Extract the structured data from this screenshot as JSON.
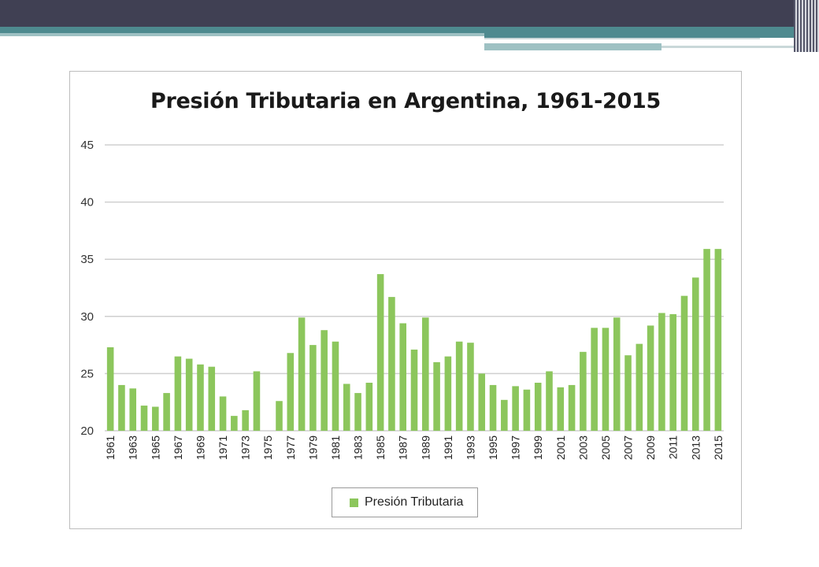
{
  "slide": {
    "accent_dark": "#404053",
    "accent_teal": "#4e8a8f"
  },
  "chart_data": {
    "type": "bar",
    "title": "Presión Tributaria en Argentina, 1961-2015",
    "xlabel": "",
    "ylabel": "",
    "ylim": [
      20,
      45
    ],
    "yticks": [
      20,
      25,
      30,
      35,
      40,
      45
    ],
    "grid": true,
    "legend_position": "bottom",
    "bar_color": "#8cc65c",
    "categories": [
      "1961",
      "1962",
      "1963",
      "1964",
      "1965",
      "1966",
      "1967",
      "1968",
      "1969",
      "1970",
      "1971",
      "1972",
      "1973",
      "1974",
      "1975",
      "1976",
      "1977",
      "1978",
      "1979",
      "1980",
      "1981",
      "1982",
      "1983",
      "1984",
      "1985",
      "1986",
      "1987",
      "1988",
      "1989",
      "1990",
      "1991",
      "1992",
      "1993",
      "1994",
      "1995",
      "1996",
      "1997",
      "1998",
      "1999",
      "2000",
      "2001",
      "2002",
      "2003",
      "2004",
      "2005",
      "2006",
      "2007",
      "2008",
      "2009",
      "2010",
      "2011",
      "2012",
      "2013",
      "2014",
      "2015"
    ],
    "x_tick_labels": [
      "1961",
      "1963",
      "1965",
      "1967",
      "1969",
      "1971",
      "1973",
      "1975",
      "1977",
      "1979",
      "1981",
      "1983",
      "1985",
      "1987",
      "1989",
      "1991",
      "1993",
      "1995",
      "1997",
      "1999",
      "2001",
      "2003",
      "2005",
      "2007",
      "2009",
      "2011",
      "2013",
      "2015"
    ],
    "series": [
      {
        "name": "Presión Tributaria",
        "values": [
          27.3,
          24.0,
          23.7,
          22.2,
          22.1,
          23.3,
          26.5,
          26.3,
          25.8,
          25.6,
          23.0,
          21.3,
          21.8,
          25.2,
          19.5,
          22.6,
          26.8,
          29.9,
          27.5,
          28.8,
          27.8,
          24.1,
          23.3,
          24.2,
          33.7,
          31.7,
          29.4,
          27.1,
          29.9,
          26.0,
          26.5,
          27.8,
          27.7,
          25.0,
          24.0,
          22.7,
          23.9,
          23.6,
          24.2,
          25.2,
          23.8,
          24.0,
          26.9,
          29.0,
          29.0,
          29.9,
          26.6,
          27.6,
          29.2,
          30.3,
          30.2,
          31.8,
          33.4,
          35.9,
          35.9
        ]
      }
    ]
  }
}
